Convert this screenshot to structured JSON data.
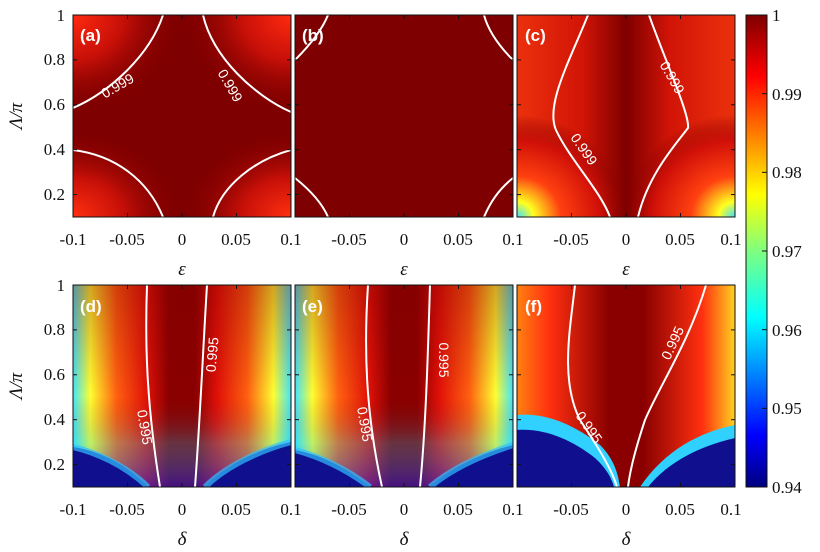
{
  "chart_data": {
    "type": "heatmap",
    "colorbar": {
      "range": [
        0.94,
        1
      ],
      "ticks": [
        "1",
        "0.99",
        "0.98",
        "0.97",
        "0.96",
        "0.95",
        "0.94"
      ],
      "colormap": "jet"
    },
    "panels": [
      {
        "label": "(a)",
        "xlabel": "ε",
        "ylabel": "Λ/π",
        "xlim": [
          -0.1,
          0.1
        ],
        "ylim": [
          0.1,
          1
        ],
        "xticks": [
          "-0.1",
          "-0.05",
          "0",
          "0.05",
          "0.1"
        ],
        "yticks": [
          "1",
          "0.8",
          "0.6",
          "0.4",
          "0.2"
        ],
        "contour_label": "0.999"
      },
      {
        "label": "(b)",
        "xlabel": "ε",
        "ylabel": "",
        "xlim": [
          -0.1,
          0.1
        ],
        "ylim": [
          0.1,
          1
        ],
        "xticks": [
          "-0.05",
          "0",
          "0.05",
          "0.1"
        ],
        "contour_label": ""
      },
      {
        "label": "(c)",
        "xlabel": "ε",
        "ylabel": "",
        "xlim": [
          -0.1,
          0.1
        ],
        "ylim": [
          0.1,
          1
        ],
        "xticks": [
          "-0.05",
          "0",
          "0.05",
          "0.1"
        ],
        "contour_label": "0.999"
      },
      {
        "label": "(d)",
        "xlabel": "δ",
        "ylabel": "Λ/π",
        "xlim": [
          -0.1,
          0.1
        ],
        "ylim": [
          0.1,
          1
        ],
        "xticks": [
          "-0.1",
          "-0.05",
          "0",
          "0.05",
          "0.1"
        ],
        "yticks": [
          "1",
          "0.8",
          "0.6",
          "0.4",
          "0.2"
        ],
        "contour_label": "0.995"
      },
      {
        "label": "(e)",
        "xlabel": "δ",
        "ylabel": "",
        "xlim": [
          -0.1,
          0.1
        ],
        "ylim": [
          0.1,
          1
        ],
        "xticks": [
          "-0.05",
          "0",
          "0.05",
          "0.1"
        ],
        "contour_label": "0.995"
      },
      {
        "label": "(f)",
        "xlabel": "δ",
        "ylabel": "",
        "xlim": [
          -0.1,
          0.1
        ],
        "ylim": [
          0.1,
          1
        ],
        "xticks": [
          "-0.05",
          "0",
          "0.05",
          "0.1"
        ],
        "contour_label": "0.995"
      }
    ]
  }
}
